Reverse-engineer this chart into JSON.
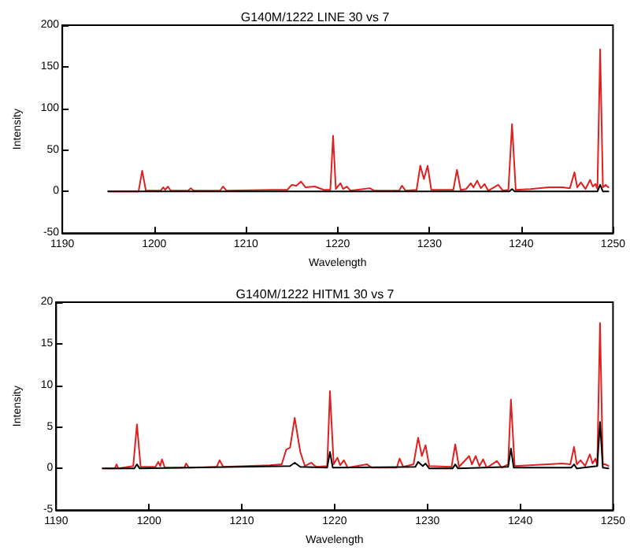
{
  "chart_data": [
    {
      "type": "line",
      "title": "G140M/1222 LINE 30 vs 7",
      "xlabel": "Wavelength",
      "ylabel": "Intensity",
      "xlim": [
        1190,
        1250
      ],
      "xticks": [
        1190,
        1200,
        1210,
        1220,
        1230,
        1240,
        1250
      ],
      "ylim": [
        -50,
        200
      ],
      "yticks": [
        -50,
        0,
        50,
        100,
        150,
        200
      ],
      "grid": false,
      "marker": "none",
      "line_style": "solid",
      "series": [
        {
          "color": "#e02020",
          "x": [
            1195,
            1198.3,
            1198.7,
            1199.1,
            1200.7,
            1201,
            1201.2,
            1201.5,
            1201.8,
            1203.7,
            1204,
            1204.3,
            1207.2,
            1207.5,
            1207.9,
            1213,
            1214.5,
            1215,
            1215.5,
            1216,
            1216.5,
            1217.5,
            1218.5,
            1219.2,
            1219.5,
            1219.8,
            1220.3,
            1220.6,
            1221,
            1221.4,
            1223.5,
            1224,
            1226.7,
            1227,
            1227.4,
            1228.6,
            1229,
            1229.4,
            1229.8,
            1230.2,
            1232.6,
            1233,
            1233.4,
            1234,
            1234.5,
            1234.8,
            1235.2,
            1235.6,
            1236,
            1236.4,
            1237.5,
            1238,
            1238.6,
            1239,
            1239.4,
            1241,
            1243,
            1244.5,
            1245.3,
            1245.8,
            1246.1,
            1246.5,
            1247,
            1247.5,
            1247.8,
            1248.1,
            1248.3,
            1248.6,
            1248.9,
            1249.2,
            1249.5
          ],
          "values": [
            0,
            0,
            25,
            1,
            1,
            5,
            2,
            6,
            1,
            1,
            4,
            1,
            1,
            6,
            1,
            2,
            2,
            8,
            7,
            12,
            5,
            6,
            2,
            2,
            67,
            3,
            10,
            3,
            6,
            1,
            4,
            1,
            1,
            7,
            1,
            2,
            31,
            15,
            31,
            2,
            2,
            26,
            2,
            3,
            10,
            5,
            13,
            4,
            9,
            1,
            8,
            1,
            2,
            81,
            2,
            3,
            5,
            5,
            4,
            23,
            5,
            11,
            3,
            14,
            6,
            9,
            3,
            171,
            5,
            8,
            5
          ]
        },
        {
          "color": "#000000",
          "x": [
            1195,
            1238.7,
            1239,
            1239.3,
            1248.3,
            1248.6,
            1248.9,
            1249.5
          ],
          "values": [
            0,
            0,
            3,
            0,
            0,
            8,
            0,
            0
          ]
        }
      ]
    },
    {
      "type": "line",
      "title": "G140M/1222 HITM1 30 vs 7",
      "xlabel": "Wavelength",
      "ylabel": "Intensity",
      "xlim": [
        1190,
        1250
      ],
      "xticks": [
        1190,
        1200,
        1210,
        1220,
        1230,
        1240,
        1250
      ],
      "ylim": [
        -5,
        20
      ],
      "yticks": [
        -5,
        0,
        5,
        10,
        15,
        20
      ],
      "grid": false,
      "marker": "none",
      "line_style": "solid",
      "series": [
        {
          "color": "#e02020",
          "x": [
            1195,
            1196.3,
            1196.5,
            1196.7,
            1198.3,
            1198.7,
            1199.1,
            1200.7,
            1201,
            1201.2,
            1201.4,
            1201.7,
            1203.8,
            1204,
            1204.3,
            1207.3,
            1207.6,
            1208,
            1213,
            1214.3,
            1214.8,
            1215.2,
            1215.7,
            1216.3,
            1216.8,
            1217.5,
            1218,
            1219.2,
            1219.5,
            1219.9,
            1220.3,
            1220.6,
            1221,
            1221.4,
            1223.5,
            1224,
            1226.7,
            1227,
            1227.4,
            1228.5,
            1229,
            1229.4,
            1229.8,
            1230.2,
            1232.6,
            1233,
            1233.4,
            1234.5,
            1234.8,
            1235.2,
            1235.6,
            1236,
            1236.4,
            1237.5,
            1238,
            1238.7,
            1239,
            1239.4,
            1243,
            1244.5,
            1245.4,
            1245.8,
            1246.1,
            1246.5,
            1247,
            1247.5,
            1247.8,
            1248.1,
            1248.3,
            1248.6,
            1248.9,
            1249.2,
            1249.5
          ],
          "values": [
            0,
            0,
            0.5,
            0,
            0.3,
            5.3,
            0.2,
            0.2,
            0.8,
            0.3,
            1.1,
            0.1,
            0.1,
            0.6,
            0.1,
            0.2,
            1.0,
            0.2,
            0.4,
            0.5,
            2.3,
            2.5,
            6.1,
            2,
            0.3,
            0.7,
            0.2,
            0.3,
            9.3,
            0.5,
            1.3,
            0.4,
            1.0,
            0.1,
            0.5,
            0.1,
            0.1,
            1.2,
            0.2,
            0.5,
            3.7,
            1.5,
            2.8,
            0.3,
            0.2,
            2.9,
            0.2,
            1.5,
            0.5,
            1.5,
            0.3,
            1.1,
            0.1,
            0.9,
            0.1,
            0.5,
            8.3,
            0.3,
            0.5,
            0.6,
            0.5,
            2.6,
            0.5,
            1.0,
            0.3,
            1.7,
            0.6,
            1.2,
            0.4,
            17.5,
            0.5,
            0.5,
            0.3
          ]
        },
        {
          "color": "#000000",
          "x": [
            1195,
            1198.4,
            1198.7,
            1199,
            1215.2,
            1215.7,
            1216.3,
            1219.2,
            1219.5,
            1219.8,
            1228.7,
            1229,
            1229.5,
            1229.8,
            1230.2,
            1232.7,
            1233,
            1233.3,
            1238.7,
            1239,
            1239.3,
            1245.5,
            1245.8,
            1246.1,
            1248.3,
            1248.6,
            1248.9,
            1249.5
          ],
          "values": [
            0,
            0,
            0.5,
            0,
            0.3,
            0.7,
            0.2,
            0.1,
            2.0,
            0.1,
            0.2,
            0.8,
            0.3,
            0.6,
            0,
            0,
            0.5,
            0,
            0.2,
            2.4,
            0.1,
            0.1,
            0.5,
            0,
            0.3,
            5.6,
            0.1,
            0
          ]
        }
      ]
    }
  ]
}
